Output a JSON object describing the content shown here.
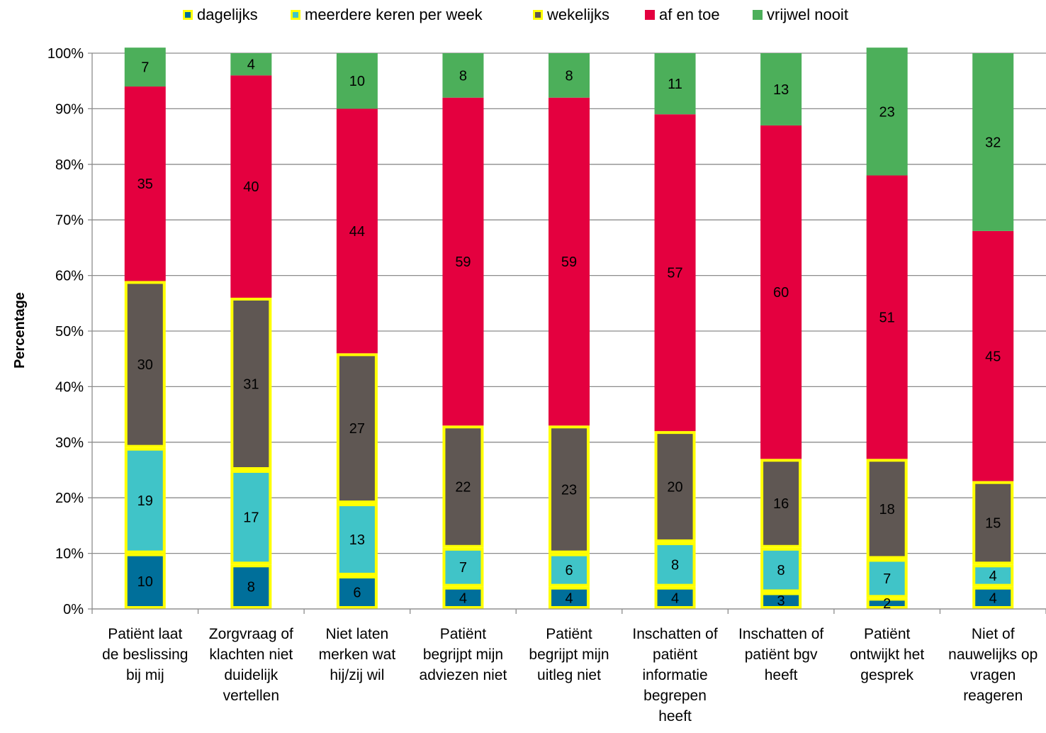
{
  "chart_data": {
    "type": "bar",
    "stacked": true,
    "ylabel": "Percentage",
    "ylim": [
      0,
      100
    ],
    "yticks": [
      "0%",
      "10%",
      "20%",
      "30%",
      "40%",
      "50%",
      "60%",
      "70%",
      "80%",
      "90%",
      "100%"
    ],
    "grid": true,
    "legend_position": "top",
    "categories": [
      [
        "Patiënt laat",
        "de beslissing",
        "bij mij"
      ],
      [
        "Zorgvraag of",
        "klachten niet",
        "duidelijk",
        "vertellen"
      ],
      [
        "Niet laten",
        "merken wat",
        "hij/zij wil"
      ],
      [
        "Patiënt",
        "begrijpt mijn",
        "adviezen niet"
      ],
      [
        "Patiënt",
        "begrijpt mijn",
        "uitleg niet"
      ],
      [
        "Inschatten of",
        "patiënt",
        "informatie",
        "begrepen",
        "heeft"
      ],
      [
        "Inschatten of",
        "patiënt bgv",
        "heeft"
      ],
      [
        "Patiënt",
        "ontwijkt het",
        "gesprek"
      ],
      [
        "Niet of",
        "nauwelijks op",
        "vragen",
        "reageren"
      ]
    ],
    "series": [
      {
        "name": "dagelijks",
        "color": "#006f9a",
        "outline": "#ffff00",
        "values": [
          10,
          8,
          6,
          4,
          4,
          4,
          3,
          2,
          4
        ]
      },
      {
        "name": "meerdere keren per week",
        "color": "#40c4c8",
        "outline": "#ffff00",
        "values": [
          19,
          17,
          13,
          7,
          6,
          8,
          8,
          7,
          4
        ]
      },
      {
        "name": "wekelijks",
        "color": "#5f5753",
        "outline": "#ffff00",
        "values": [
          30,
          31,
          27,
          22,
          23,
          20,
          16,
          18,
          15
        ]
      },
      {
        "name": "af en toe",
        "color": "#e4003f",
        "outline": "",
        "values": [
          35,
          40,
          44,
          59,
          59,
          57,
          60,
          51,
          45
        ]
      },
      {
        "name": "vrijwel nooit",
        "color": "#4caf5a",
        "outline": "",
        "values": [
          7,
          4,
          10,
          8,
          8,
          11,
          13,
          23,
          32
        ]
      }
    ]
  }
}
